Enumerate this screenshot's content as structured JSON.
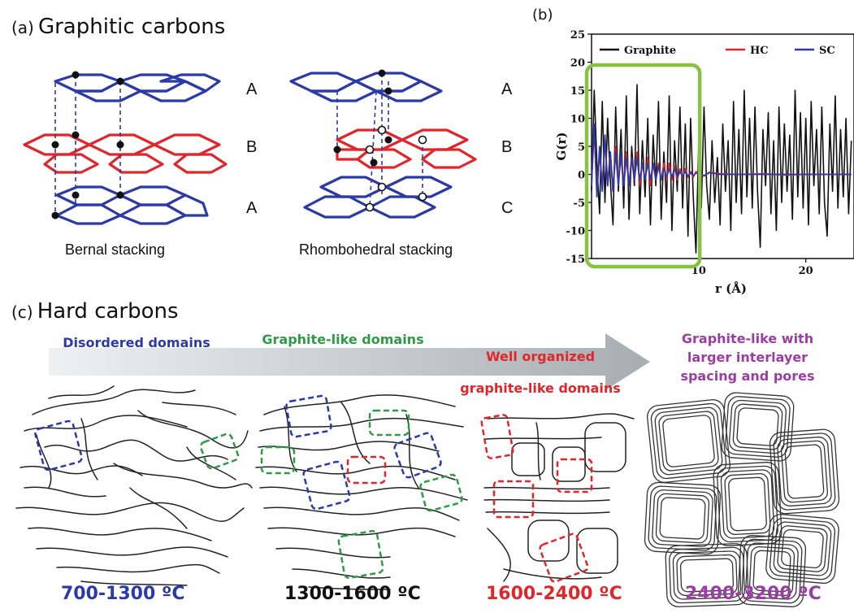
{
  "panel_a": {
    "tag": "(a)",
    "title": "Graphitic carbons",
    "bernal": {
      "caption": "Bernal stacking",
      "layers": [
        "A",
        "B",
        "A"
      ]
    },
    "rhombo": {
      "caption": "Rhombohedral stacking",
      "layers": [
        "A",
        "B",
        "C"
      ]
    },
    "colors": {
      "layer_a": "#2b3aa6",
      "layer_b": "#e0262a"
    }
  },
  "panel_b": {
    "tag": "(b)",
    "highlight_color": "#86c440",
    "chart_data": {
      "type": "line",
      "title": "",
      "xlabel": "r (Å)",
      "ylabel": "G(r)",
      "xlim": [
        0,
        24.5
      ],
      "ylim": [
        -15,
        25
      ],
      "xticks": [
        10,
        20
      ],
      "yticks": [
        -15,
        -10,
        -5,
        0,
        5,
        10,
        15,
        20,
        25
      ],
      "legend": {
        "placement": "top",
        "entries": [
          "Graphite",
          "HC",
          "SC"
        ]
      },
      "series": [
        {
          "name": "Graphite",
          "color": "#111111",
          "x": [
            0.0,
            0.25,
            0.5,
            0.75,
            1.0,
            1.25,
            1.5,
            1.75,
            2.0,
            2.25,
            2.5,
            2.75,
            3.0,
            3.25,
            3.5,
            3.75,
            4.0,
            4.25,
            4.5,
            4.75,
            5.0,
            5.25,
            5.5,
            5.75,
            6.0,
            6.25,
            6.5,
            6.75,
            7.0,
            7.25,
            7.5,
            7.75,
            8.0,
            8.25,
            8.5,
            8.75,
            9.0,
            9.25,
            9.5,
            9.75,
            10.0,
            10.25,
            10.5,
            10.75,
            11.0,
            11.25,
            11.5,
            11.75,
            12.0,
            12.25,
            12.5,
            12.75,
            13.0,
            13.25,
            13.5,
            13.75,
            14.0,
            14.25,
            14.5,
            14.75,
            15.0,
            15.25,
            15.5,
            15.75,
            16.0,
            16.25,
            16.5,
            16.75,
            17.0,
            17.25,
            17.5,
            17.75,
            18.0,
            18.25,
            18.5,
            18.75,
            19.0,
            19.25,
            19.5,
            19.75,
            20.0,
            20.25,
            20.5,
            20.75,
            21.0,
            21.25,
            21.5,
            21.75,
            22.0,
            22.25,
            22.5,
            22.75,
            23.0,
            23.25,
            23.5,
            23.75,
            24.0,
            24.25
          ],
          "y": [
            -3,
            15,
            2,
            -7,
            13,
            -5,
            10,
            -1,
            -9,
            12,
            -3,
            8,
            -6,
            14,
            -8,
            5,
            -2,
            16,
            -7,
            6,
            -4,
            10,
            -9,
            7,
            -2,
            13,
            -8,
            4,
            -5,
            14,
            -10,
            6,
            -3,
            12,
            -6,
            9,
            -11,
            10,
            -4,
            -14,
            5,
            -6,
            12,
            -2,
            -8,
            6,
            -5,
            3,
            -9,
            9,
            -3,
            6,
            -10,
            13,
            -5,
            8,
            -7,
            15,
            -4,
            10,
            -6,
            12,
            -3,
            -13,
            8,
            -2,
            11,
            -7,
            6,
            -10,
            12,
            -5,
            9,
            -3,
            7,
            -8,
            15,
            -4,
            11,
            -6,
            10,
            -9,
            13,
            -2,
            8,
            -7,
            12,
            -5,
            -11,
            9,
            -3,
            14,
            -6,
            8,
            -4,
            10,
            -7,
            6
          ]
        },
        {
          "name": "HC",
          "color": "#e0262a",
          "x": [
            0.0,
            0.25,
            0.5,
            0.75,
            1.0,
            1.25,
            1.5,
            1.75,
            2.0,
            2.25,
            2.5,
            2.75,
            3.0,
            3.25,
            3.5,
            3.75,
            4.0,
            4.25,
            4.5,
            4.75,
            5.0,
            5.25,
            5.5,
            5.75,
            6.0,
            6.25,
            6.5,
            6.75,
            7.0,
            7.25,
            7.5,
            7.75,
            8.0,
            8.25,
            8.5,
            8.75,
            9.0,
            9.25,
            9.5,
            9.75,
            10.0,
            10.5,
            11.0,
            12.0,
            14.0,
            16.0,
            18.0,
            20.0,
            22.0,
            24.25
          ],
          "y": [
            -1,
            8,
            -3,
            4,
            -2,
            6,
            -2,
            4,
            -3,
            5,
            -1,
            3,
            -2,
            4,
            -2,
            3,
            -1,
            4,
            -2,
            2,
            -1,
            3,
            -2,
            2,
            -1,
            2,
            -1,
            2,
            -1,
            2,
            -1,
            1.5,
            -1,
            1,
            -0.5,
            1,
            -0.5,
            0.5,
            -0.5,
            0.5,
            0.3,
            -0.3,
            0.4,
            0.1,
            0,
            0.1,
            -0.1,
            0,
            0,
            0
          ]
        },
        {
          "name": "SC",
          "color": "#2b3aa6",
          "x": [
            0.0,
            0.25,
            0.5,
            0.75,
            1.0,
            1.25,
            1.5,
            1.75,
            2.0,
            2.25,
            2.5,
            2.75,
            3.0,
            3.25,
            3.5,
            3.75,
            4.0,
            4.25,
            4.5,
            4.75,
            5.0,
            5.25,
            5.5,
            5.75,
            6.0,
            6.25,
            6.5,
            6.75,
            7.0,
            7.25,
            7.5,
            7.75,
            8.0,
            8.25,
            8.5,
            8.75,
            9.0,
            9.25,
            9.5,
            9.75,
            10.0,
            10.5,
            11.0,
            12.0,
            14.0,
            16.0,
            18.0,
            20.0,
            22.0,
            24.25
          ],
          "y": [
            -2,
            9,
            -4,
            5,
            -3,
            7,
            -2,
            4,
            -3,
            4,
            -2,
            4,
            -2,
            3,
            -2,
            3,
            -1,
            3,
            -1,
            2,
            -1,
            2,
            -1,
            2,
            -1,
            1.5,
            -1,
            1,
            -0.5,
            1,
            -0.5,
            1,
            -0.5,
            0.5,
            -0.3,
            0.5,
            -0.3,
            0.3,
            -0.2,
            0.2,
            0.2,
            -0.2,
            0.3,
            0,
            0,
            0,
            0,
            0,
            0,
            0
          ]
        }
      ]
    }
  },
  "panel_c": {
    "tag": "(c)",
    "title": "Hard carbons",
    "stages": [
      {
        "label_lines": [
          "Disordered domains"
        ],
        "color": "#2b3aa6",
        "temp": "700-1300 ºC"
      },
      {
        "label_lines": [
          "Graphite-like domains"
        ],
        "color": "#2e9a44",
        "temp": "1300-1600 ºC"
      },
      {
        "label_lines": [
          "Well organized",
          "graphite-like domains"
        ],
        "color": "#e0262a",
        "temp": "1600-2400 ºC"
      },
      {
        "label_lines": [
          "Graphite-like with",
          "larger interlayer",
          "spacing and pores"
        ],
        "color": "#9b3ea3",
        "temp": "2400-3200 ºC"
      }
    ],
    "temp_colors": [
      "#2b3aa6",
      "#111111",
      "#e0262a",
      "#9b3ea3"
    ]
  }
}
